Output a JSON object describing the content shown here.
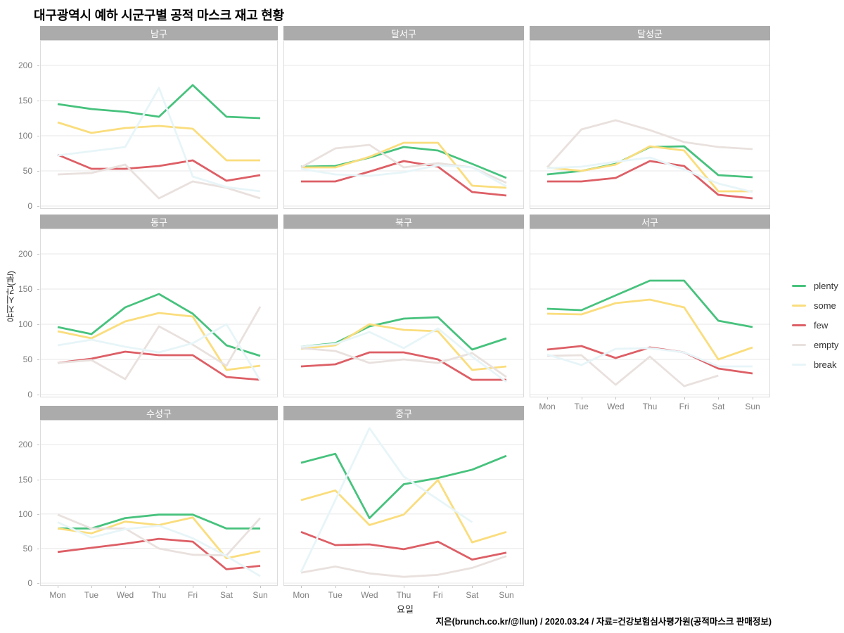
{
  "title": "대구광역시 예하 시군구별 공적 마스크 재고 현황",
  "caption": "지은(brunch.co.kr/@llun) / 2020.03.24 / 자료=건강보험심사평가원(공적마스크 판매정보)",
  "chart_data": {
    "type": "line",
    "facet_layout": {
      "rows": 3,
      "cols": 3,
      "note": "8 facets, bottom-right cell empty"
    },
    "x": [
      "Mon",
      "Tue",
      "Wed",
      "Thu",
      "Fri",
      "Sat",
      "Sun"
    ],
    "xlabel": "요일",
    "ylabel": "유지시간(분)",
    "y_ticks": [
      0,
      50,
      100,
      150,
      200
    ],
    "ylim": [
      -4,
      236
    ],
    "grid": true,
    "legend_position": "right",
    "series_order": [
      "plenty",
      "some",
      "few",
      "empty",
      "break"
    ],
    "legend": [
      {
        "name": "plenty",
        "color": "#47c27d"
      },
      {
        "name": "some",
        "color": "#fadd7d"
      },
      {
        "name": "few",
        "color": "#dd5f66"
      },
      {
        "name": "empty",
        "color": "#e9e1de"
      },
      {
        "name": "break",
        "color": "#e7f5f8"
      }
    ],
    "facets": [
      {
        "label": "남구",
        "series": {
          "plenty": [
            145,
            138,
            134,
            127,
            172,
            127,
            125
          ],
          "some": [
            119,
            104,
            111,
            114,
            110,
            65,
            65
          ],
          "few": [
            73,
            53,
            53,
            57,
            65,
            36,
            44
          ],
          "empty": [
            45,
            47,
            59,
            11,
            35,
            26,
            11
          ],
          "break": [
            72,
            78,
            84,
            168,
            42,
            27,
            21
          ]
        }
      },
      {
        "label": "달서구",
        "series": {
          "plenty": [
            56,
            57,
            69,
            84,
            79,
            60,
            40
          ],
          "some": [
            55,
            55,
            70,
            90,
            90,
            29,
            26
          ],
          "few": [
            35,
            35,
            49,
            64,
            56,
            20,
            15
          ],
          "empty": [
            55,
            82,
            87,
            55,
            61,
            55,
            33
          ],
          "break": [
            53,
            45,
            43,
            48,
            58,
            55,
            28
          ]
        }
      },
      {
        "label": "달성군",
        "series": {
          "plenty": [
            45,
            50,
            60,
            84,
            85,
            44,
            41
          ],
          "some": [
            55,
            50,
            59,
            85,
            79,
            21,
            21
          ],
          "few": [
            35,
            35,
            40,
            64,
            57,
            16,
            11
          ],
          "empty": [
            55,
            109,
            122,
            108,
            91,
            84,
            81
          ],
          "break": [
            54,
            56,
            63,
            69,
            52,
            32,
            20
          ]
        }
      },
      {
        "label": "동구",
        "series": {
          "plenty": [
            96,
            86,
            124,
            143,
            115,
            70,
            55
          ],
          "some": [
            90,
            80,
            104,
            116,
            111,
            35,
            41
          ],
          "few": [
            45,
            51,
            61,
            56,
            56,
            25,
            21
          ],
          "empty": [
            45,
            49,
            22,
            97,
            71,
            41,
            125
          ],
          "break": [
            70,
            78,
            68,
            60,
            73,
            100,
            20
          ]
        }
      },
      {
        "label": "북구",
        "series": {
          "plenty": [
            68,
            73,
            97,
            108,
            110,
            64,
            80
          ],
          "some": [
            65,
            70,
            100,
            92,
            90,
            35,
            40
          ],
          "few": [
            40,
            43,
            60,
            60,
            50,
            21,
            21
          ],
          "empty": [
            66,
            62,
            45,
            50,
            45,
            59,
            25
          ],
          "break": [
            68,
            72,
            89,
            66,
            94,
            54,
            18
          ]
        }
      },
      {
        "label": "서구",
        "series": {
          "plenty": [
            122,
            120,
            141,
            162,
            162,
            105,
            96
          ],
          "some": [
            115,
            114,
            130,
            135,
            124,
            50,
            67
          ],
          "few": [
            64,
            69,
            52,
            67,
            60,
            37,
            30
          ],
          "empty": [
            55,
            56,
            14,
            54,
            12,
            27,
            null
          ],
          "break": [
            57,
            42,
            65,
            66,
            60,
            40,
            40
          ]
        }
      },
      {
        "label": "수성구",
        "series": {
          "plenty": [
            79,
            79,
            94,
            99,
            99,
            79,
            79
          ],
          "some": [
            79,
            72,
            89,
            84,
            95,
            36,
            46
          ],
          "few": [
            45,
            51,
            57,
            64,
            60,
            20,
            25
          ],
          "empty": [
            99,
            79,
            79,
            50,
            41,
            40,
            94
          ],
          "break": [
            88,
            66,
            78,
            83,
            65,
            39,
            10
          ]
        }
      },
      {
        "label": "중구",
        "series": {
          "plenty": [
            174,
            187,
            94,
            143,
            152,
            164,
            184
          ],
          "some": [
            120,
            134,
            84,
            99,
            149,
            59,
            74
          ],
          "few": [
            74,
            55,
            56,
            49,
            60,
            34,
            44
          ],
          "empty": [
            15,
            24,
            14,
            9,
            12,
            22,
            39
          ],
          "break": [
            16,
            120,
            224,
            154,
            121,
            88,
            null
          ]
        }
      }
    ]
  }
}
